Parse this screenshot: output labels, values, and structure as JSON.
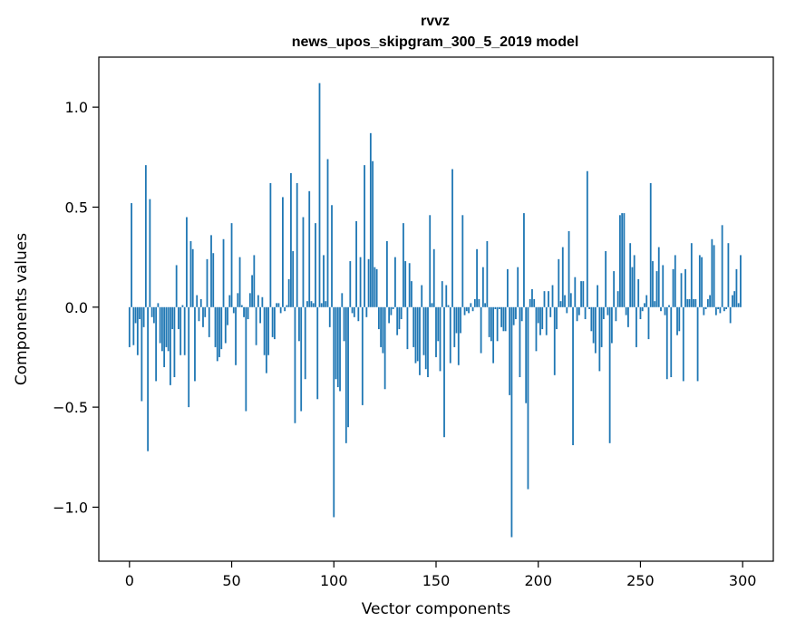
{
  "chart_data": {
    "type": "bar",
    "title": "rvvz",
    "subtitle": "news_upos_skipgram_300_5_2019 model",
    "xlabel": "Vector components",
    "ylabel": "Components values",
    "xlim": [
      -15,
      315
    ],
    "ylim": [
      -1.27,
      1.25
    ],
    "xticks": [
      0,
      50,
      100,
      150,
      200,
      250,
      300
    ],
    "xtick_labels": [
      "0",
      "50",
      "100",
      "150",
      "200",
      "250",
      "300"
    ],
    "yticks": [
      -1.0,
      -0.5,
      0.0,
      0.5,
      1.0
    ],
    "ytick_labels": [
      "−1.0",
      "−0.5",
      "0.0",
      "0.5",
      "1.0"
    ],
    "bar_color": "#1f77b4",
    "values": [
      -0.2,
      0.52,
      -0.19,
      -0.08,
      -0.24,
      -0.06,
      -0.47,
      -0.1,
      0.71,
      -0.72,
      0.54,
      -0.05,
      -0.08,
      -0.37,
      0.02,
      -0.18,
      -0.22,
      -0.3,
      -0.2,
      -0.22,
      -0.39,
      -0.11,
      -0.35,
      0.21,
      -0.11,
      -0.24,
      0.01,
      -0.24,
      0.45,
      -0.5,
      0.33,
      0.29,
      -0.37,
      0.06,
      -0.07,
      0.04,
      -0.1,
      -0.05,
      0.24,
      -0.15,
      0.36,
      0.27,
      -0.2,
      -0.27,
      -0.25,
      -0.21,
      0.34,
      -0.18,
      -0.09,
      0.06,
      0.42,
      -0.03,
      -0.29,
      0.07,
      0.25,
      0.01,
      -0.05,
      -0.52,
      -0.06,
      0.07,
      0.16,
      0.26,
      -0.19,
      0.06,
      -0.08,
      0.05,
      -0.24,
      -0.33,
      -0.24,
      0.62,
      -0.15,
      -0.16,
      0.02,
      0.02,
      -0.03,
      0.55,
      -0.02,
      0.01,
      0.14,
      0.67,
      0.28,
      -0.58,
      0.62,
      -0.17,
      -0.52,
      0.45,
      -0.36,
      0.03,
      0.58,
      0.03,
      0.02,
      0.42,
      -0.46,
      1.12,
      0.02,
      0.26,
      0.03,
      0.74,
      -0.1,
      0.51,
      -1.05,
      -0.36,
      -0.4,
      -0.42,
      0.07,
      -0.17,
      -0.68,
      -0.6,
      0.23,
      -0.03,
      -0.05,
      0.43,
      -0.07,
      0.25,
      -0.49,
      0.71,
      -0.05,
      0.24,
      0.87,
      0.73,
      0.2,
      0.19,
      -0.11,
      -0.2,
      -0.23,
      -0.41,
      0.33,
      -0.08,
      -0.04,
      -0.01,
      0.25,
      -0.14,
      -0.11,
      -0.06,
      0.42,
      0.23,
      -0.21,
      0.22,
      0.13,
      -0.2,
      -0.28,
      -0.27,
      -0.34,
      0.11,
      -0.24,
      -0.31,
      -0.35,
      0.46,
      0.02,
      0.29,
      -0.25,
      -0.17,
      -0.32,
      0.13,
      -0.65,
      0.11,
      0.01,
      -0.28,
      0.69,
      -0.2,
      -0.13,
      -0.29,
      -0.13,
      0.46,
      -0.04,
      -0.02,
      -0.03,
      0.02,
      -0.02,
      0.04,
      0.29,
      0.04,
      -0.23,
      0.2,
      0.02,
      0.33,
      -0.15,
      -0.17,
      -0.28,
      -0.01,
      -0.17,
      -0.01,
      -0.1,
      -0.12,
      -0.12,
      0.19,
      -0.44,
      -1.15,
      -0.09,
      -0.06,
      0.2,
      -0.35,
      -0.07,
      0.47,
      -0.48,
      -0.91,
      0.04,
      0.09,
      0.04,
      -0.22,
      -0.08,
      -0.14,
      -0.11,
      0.08,
      -0.14,
      0.08,
      -0.05,
      0.11,
      -0.34,
      -0.11,
      0.24,
      0.03,
      0.3,
      0.06,
      -0.03,
      0.38,
      0.07,
      -0.69,
      0.15,
      -0.07,
      -0.04,
      0.13,
      0.13,
      -0.06,
      0.68,
      -0.01,
      -0.12,
      -0.18,
      -0.23,
      0.11,
      -0.32,
      -0.2,
      -0.06,
      0.28,
      -0.04,
      -0.68,
      -0.18,
      0.18,
      -0.07,
      0.08,
      0.46,
      0.47,
      0.47,
      -0.04,
      -0.1,
      0.32,
      0.2,
      0.26,
      -0.2,
      0.14,
      -0.06,
      -0.02,
      0.02,
      0.06,
      -0.16,
      0.62,
      0.23,
      0.03,
      0.18,
      0.3,
      -0.02,
      0.21,
      -0.04,
      -0.36,
      0.01,
      -0.35,
      0.19,
      0.26,
      -0.14,
      -0.12,
      0.17,
      -0.37,
      0.19,
      0.04,
      0.04,
      0.32,
      0.04,
      0.04,
      -0.37,
      0.26,
      0.25,
      -0.04,
      -0.01,
      0.04,
      0.06,
      0.34,
      0.31,
      -0.04,
      -0.01,
      -0.03,
      0.41,
      -0.02,
      -0.01,
      0.32,
      -0.08,
      0.06,
      0.08,
      0.19,
      0.02,
      0.26
    ]
  }
}
